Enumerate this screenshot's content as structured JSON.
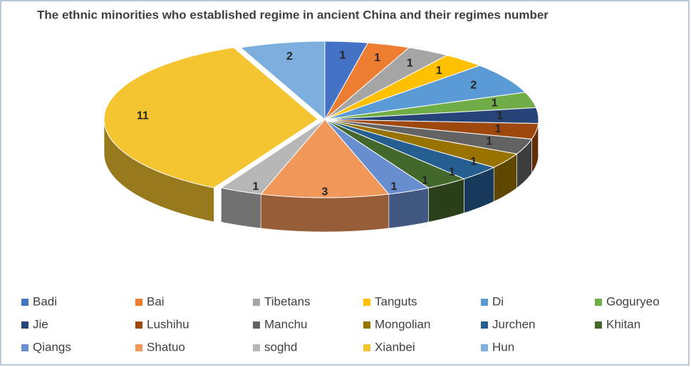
{
  "chart_data": {
    "type": "pie",
    "title": "The ethnic minorities who established regime in ancient China and their regimes number",
    "legend": "bottom",
    "series": [
      {
        "name": "Badi",
        "color": "#4472c4",
        "values": [
          1
        ]
      },
      {
        "name": "Bai",
        "color": "#ed7d31",
        "values": [
          1
        ]
      },
      {
        "name": "Tibetans",
        "color": "#a5a5a5",
        "values": [
          1
        ]
      },
      {
        "name": "Tanguts",
        "color": "#ffc000",
        "values": [
          1
        ]
      },
      {
        "name": "Di",
        "color": "#5b9bd5",
        "values": [
          2
        ]
      },
      {
        "name": "Goguryeo",
        "color": "#70ad47",
        "values": [
          1
        ]
      },
      {
        "name": "Jie",
        "color": "#264478",
        "values": [
          1
        ]
      },
      {
        "name": "Lushihu",
        "color": "#9e480e",
        "values": [
          1
        ]
      },
      {
        "name": "Manchu",
        "color": "#636363",
        "values": [
          1
        ]
      },
      {
        "name": "Mongolian",
        "color": "#997300",
        "values": [
          1
        ]
      },
      {
        "name": "Jurchen",
        "color": "#255e91",
        "values": [
          1
        ]
      },
      {
        "name": "Khitan",
        "color": "#43682b",
        "values": [
          1
        ]
      },
      {
        "name": "Qiangs",
        "color": "#698ed0",
        "values": [
          1
        ]
      },
      {
        "name": "Shatuo",
        "color": "#f1975a",
        "values": [
          3
        ]
      },
      {
        "name": "soghd",
        "color": "#b7b7b7",
        "values": [
          1
        ]
      },
      {
        "name": "Xianbei",
        "color": "#f5c431",
        "values": [
          11
        ]
      },
      {
        "name": "Hun",
        "color": "#7cafdd",
        "values": [
          2
        ]
      }
    ]
  }
}
